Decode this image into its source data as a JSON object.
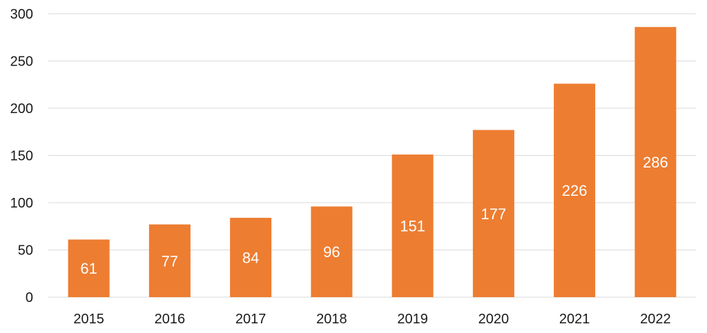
{
  "chart_data": {
    "type": "bar",
    "categories": [
      "2015",
      "2016",
      "2017",
      "2018",
      "2019",
      "2020",
      "2021",
      "2022"
    ],
    "values": [
      61,
      77,
      84,
      96,
      151,
      177,
      226,
      286
    ],
    "data_labels": [
      "61",
      "77",
      "84",
      "96",
      "151",
      "177",
      "226",
      "286"
    ],
    "y_ticks": [
      0,
      50,
      100,
      150,
      200,
      250,
      300
    ],
    "ylim": [
      0,
      300
    ],
    "grid": true,
    "legend": "none",
    "bar_color": "#ED7D31",
    "data_label_color": "#FFFFFF"
  }
}
